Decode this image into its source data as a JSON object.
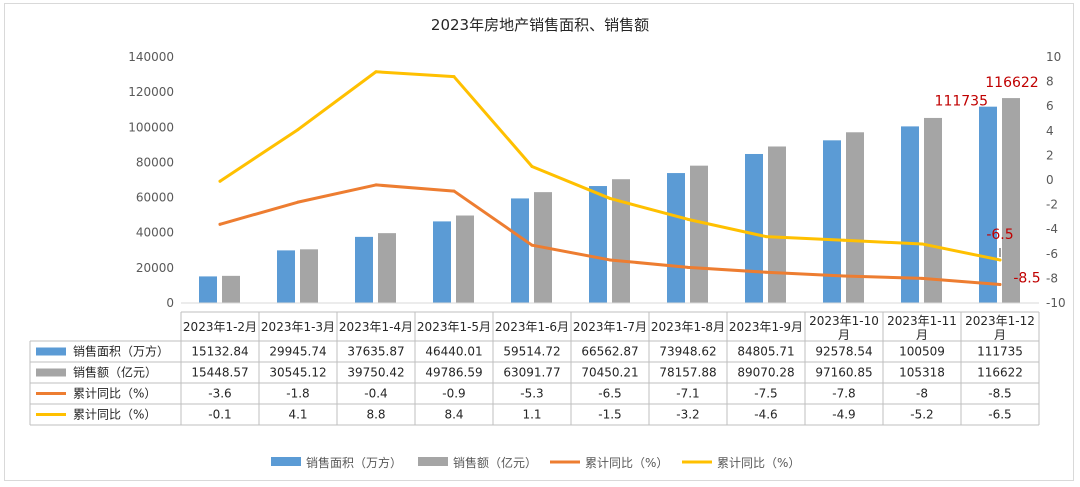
{
  "chart_data": {
    "type": "bar",
    "title": "2023年房地产销售面积、销售额",
    "categories": [
      "2023年1-2月",
      "2023年1-3月",
      "2023年1-4月",
      "2023年1-5月",
      "2023年1-6月",
      "2023年1-7月",
      "2023年1-8月",
      "2023年1-9月",
      "2023年1-10月",
      "2023年1-11月",
      "2023年1-12月"
    ],
    "left_axis": {
      "min": 0,
      "max": 140000,
      "step": 20000,
      "ticks": [
        "0",
        "20000",
        "40000",
        "60000",
        "80000",
        "100000",
        "120000",
        "140000"
      ]
    },
    "right_axis": {
      "min": -10,
      "max": 10,
      "step": 2,
      "ticks": [
        "-10",
        "-8",
        "-6",
        "-4",
        "-2",
        "0",
        "2",
        "4",
        "6",
        "8",
        "10"
      ]
    },
    "series": [
      {
        "name": "销售面积（万方）",
        "type": "bar",
        "axis": "left",
        "color": "#5b9bd5",
        "values": [
          15132.84,
          29945.74,
          37635.87,
          46440.01,
          59514.72,
          66562.87,
          73948.62,
          84805.71,
          92578.54,
          100509,
          111735
        ],
        "labels": [
          "15132.84",
          "29945.74",
          "37635.87",
          "46440.01",
          "59514.72",
          "66562.87",
          "73948.62",
          "84805.71",
          "92578.54",
          "100509",
          "111735"
        ]
      },
      {
        "name": "销售额（亿元）",
        "type": "bar",
        "axis": "left",
        "color": "#a5a5a5",
        "values": [
          15448.57,
          30545.12,
          39750.42,
          49786.59,
          63091.77,
          70450.21,
          78157.88,
          89070.28,
          97160.85,
          105318,
          116622
        ],
        "labels": [
          "15448.57",
          "30545.12",
          "39750.42",
          "49786.59",
          "63091.77",
          "70450.21",
          "78157.88",
          "89070.28",
          "97160.85",
          "105318",
          "116622"
        ]
      },
      {
        "name": "累计同比（%）",
        "type": "line",
        "axis": "right",
        "color": "#ed7d31",
        "values": [
          -3.6,
          -1.8,
          -0.4,
          -0.9,
          -5.3,
          -6.5,
          -7.1,
          -7.5,
          -7.8,
          -8,
          -8.5
        ],
        "labels": [
          "-3.6",
          "-1.8",
          "-0.4",
          "-0.9",
          "-5.3",
          "-6.5",
          "-7.1",
          "-7.5",
          "-7.8",
          "-8",
          "-8.5"
        ]
      },
      {
        "name": "累计同比（%）",
        "type": "line",
        "axis": "right",
        "color": "#ffc000",
        "values": [
          -0.1,
          4.1,
          8.8,
          8.4,
          1.1,
          -1.5,
          -3.2,
          -4.6,
          -4.9,
          -5.2,
          -6.5
        ],
        "labels": [
          "-0.1",
          "4.1",
          "8.8",
          "8.4",
          "1.1",
          "-1.5",
          "-3.2",
          "-4.6",
          "-4.9",
          "-5.2",
          "-6.5"
        ]
      }
    ],
    "annotations": [
      {
        "text": "111735",
        "color": "#c00000",
        "series": 0,
        "point": 10
      },
      {
        "text": "116622",
        "color": "#c00000",
        "series": 1,
        "point": 10
      },
      {
        "text": "-6.5",
        "color": "#c00000",
        "series": 3,
        "point": 10
      },
      {
        "text": "-8.5",
        "color": "#c00000",
        "series": 2,
        "point": 10
      }
    ],
    "legend_position": "bottom",
    "data_table": true
  }
}
